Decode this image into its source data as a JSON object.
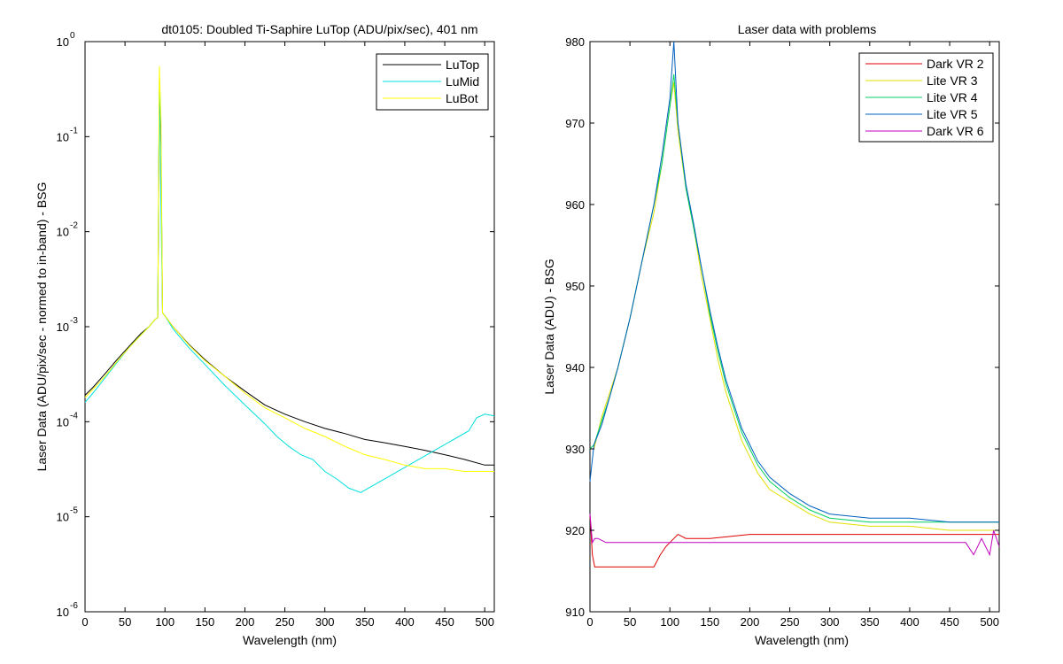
{
  "chart_data": [
    {
      "type": "line",
      "title": "dt0105: Doubled Ti-Saphire LuTop (ADU/pix/sec), 401 nm",
      "xlabel": "Wavelength (nm)",
      "ylabel": "Laser Data (ADU/pix/sec - normed to in-band) - BSG",
      "xlim": [
        0,
        512
      ],
      "ylim": [
        1e-06,
        1
      ],
      "yscale": "log",
      "x_ticks": [
        "0",
        "50",
        "100",
        "150",
        "200",
        "250",
        "300",
        "350",
        "400",
        "450",
        "500"
      ],
      "y_ticks": [
        {
          "base": "10",
          "exp": "-6"
        },
        {
          "base": "10",
          "exp": "-5"
        },
        {
          "base": "10",
          "exp": "-4"
        },
        {
          "base": "10",
          "exp": "-3"
        },
        {
          "base": "10",
          "exp": "-2"
        },
        {
          "base": "10",
          "exp": "-1"
        },
        {
          "base": "10",
          "exp": "0"
        }
      ],
      "grid": false,
      "legend_position": "top-right",
      "series": [
        {
          "name": "LuTop",
          "color": "#000000",
          "x": [
            0,
            10,
            25,
            40,
            55,
            70,
            80,
            88,
            91,
            93,
            95,
            97,
            100,
            110,
            130,
            150,
            175,
            200,
            225,
            250,
            275,
            300,
            325,
            350,
            375,
            400,
            425,
            450,
            475,
            500,
            512
          ],
          "y": [
            0.00019,
            0.00023,
            0.00032,
            0.00045,
            0.00062,
            0.00085,
            0.001,
            0.0012,
            0.00125,
            0.3,
            0.08,
            0.0014,
            0.0013,
            0.001,
            0.00065,
            0.00045,
            0.0003,
            0.00021,
            0.00015,
            0.00012,
            0.0001,
            8.5e-05,
            7.5e-05,
            6.5e-05,
            6e-05,
            5.5e-05,
            5e-05,
            4.5e-05,
            4e-05,
            3.5e-05,
            3.5e-05
          ]
        },
        {
          "name": "LuMid",
          "color": "#00e0e0",
          "x": [
            0,
            10,
            25,
            40,
            55,
            70,
            80,
            88,
            91,
            93,
            95,
            97,
            100,
            110,
            130,
            150,
            175,
            200,
            225,
            240,
            255,
            270,
            285,
            300,
            315,
            330,
            345,
            480,
            490,
            500,
            512
          ],
          "y": [
            0.00016,
            0.0002,
            0.00029,
            0.00042,
            0.0006,
            0.00082,
            0.001,
            0.0012,
            0.00125,
            0.4,
            0.02,
            0.0014,
            0.0013,
            0.00095,
            0.0006,
            0.0004,
            0.00024,
            0.00015,
            9.5e-05,
            7e-05,
            5.5e-05,
            4.5e-05,
            4e-05,
            3e-05,
            2.5e-05,
            2e-05,
            1.8e-05,
            8e-05,
            0.00011,
            0.00012,
            0.000115
          ]
        },
        {
          "name": "LuBot",
          "color": "#ffff00",
          "x": [
            0,
            10,
            25,
            40,
            55,
            70,
            80,
            88,
            91,
            93,
            95,
            97,
            100,
            110,
            130,
            150,
            175,
            200,
            225,
            250,
            275,
            300,
            325,
            350,
            375,
            400,
            425,
            450,
            475,
            500,
            512
          ],
          "y": [
            0.00018,
            0.00022,
            0.0003,
            0.00043,
            0.0006,
            0.00082,
            0.001,
            0.0012,
            0.00125,
            0.55,
            0.15,
            0.0014,
            0.0013,
            0.001,
            0.00064,
            0.00044,
            0.0003,
            0.0002,
            0.00014,
            0.00011,
            8.5e-05,
            7e-05,
            5.5e-05,
            4.5e-05,
            4e-05,
            3.5e-05,
            3.2e-05,
            3.2e-05,
            3e-05,
            3e-05,
            3e-05
          ]
        }
      ]
    },
    {
      "type": "line",
      "title": "Laser data with problems",
      "xlabel": "Wavelength (nm)",
      "ylabel": "Laser Data (ADU) - BSG",
      "xlim": [
        0,
        512
      ],
      "ylim": [
        910,
        980
      ],
      "yscale": "linear",
      "x_ticks": [
        "0",
        "50",
        "100",
        "150",
        "200",
        "250",
        "300",
        "350",
        "400",
        "450",
        "500"
      ],
      "y_ticks": [
        "910",
        "920",
        "930",
        "940",
        "950",
        "960",
        "970",
        "980"
      ],
      "grid": false,
      "legend_position": "top-right",
      "series": [
        {
          "name": "Dark VR 2",
          "color": "#e00000",
          "x": [
            0,
            3,
            6,
            10,
            20,
            40,
            60,
            80,
            88,
            95,
            100,
            105,
            110,
            120,
            150,
            200,
            250,
            300,
            350,
            400,
            450,
            500,
            512
          ],
          "y": [
            922,
            917,
            915.5,
            915.5,
            915.5,
            915.5,
            915.5,
            915.5,
            917,
            918,
            918.5,
            919,
            919.5,
            919,
            919,
            919.5,
            919.5,
            919.5,
            919.5,
            919.5,
            919.5,
            919.5,
            919.5
          ]
        },
        {
          "name": "Lite VR 3",
          "color": "#e0e000",
          "x": [
            0,
            5,
            15,
            25,
            35,
            50,
            65,
            80,
            90,
            100,
            105,
            110,
            120,
            130,
            140,
            150,
            160,
            170,
            180,
            190,
            200,
            210,
            225,
            250,
            275,
            300,
            350,
            400,
            450,
            500,
            512
          ],
          "y": [
            930,
            930,
            934,
            937,
            940,
            946,
            953,
            959,
            965,
            972,
            975,
            969,
            962,
            957,
            951,
            946,
            941,
            937,
            934,
            931,
            929,
            927,
            925,
            923.5,
            922,
            921,
            920.5,
            920.5,
            920,
            920,
            920
          ]
        },
        {
          "name": "Lite VR 4",
          "color": "#00d060",
          "x": [
            0,
            5,
            15,
            25,
            35,
            50,
            65,
            80,
            90,
            100,
            105,
            110,
            120,
            130,
            140,
            150,
            160,
            170,
            180,
            190,
            200,
            210,
            225,
            250,
            275,
            300,
            350,
            400,
            450,
            500,
            512
          ],
          "y": [
            930,
            930.5,
            933.5,
            936.5,
            940,
            946,
            953,
            960,
            965,
            972,
            976,
            970,
            962,
            957,
            952,
            946.5,
            942,
            938,
            935,
            932,
            930,
            928,
            926,
            924,
            922.5,
            921.5,
            921,
            921,
            921,
            921,
            921
          ]
        },
        {
          "name": "Lite VR 5",
          "color": "#0060c0",
          "x": [
            0,
            5,
            15,
            25,
            35,
            50,
            65,
            80,
            90,
            100,
            105,
            110,
            120,
            130,
            140,
            150,
            160,
            170,
            180,
            190,
            200,
            210,
            225,
            250,
            275,
            300,
            350,
            400,
            450,
            500,
            512
          ],
          "y": [
            926,
            930.5,
            933,
            936.5,
            940,
            946,
            953,
            960,
            966,
            973,
            980,
            970,
            962.5,
            957.5,
            952,
            947,
            942.5,
            938.5,
            935.5,
            932.5,
            930.5,
            928.5,
            926.5,
            924.5,
            923,
            922,
            921.5,
            921.5,
            921,
            921,
            921
          ]
        },
        {
          "name": "Dark VR 6",
          "color": "#c000c0",
          "x": [
            0,
            3,
            6,
            10,
            20,
            50,
            100,
            150,
            200,
            250,
            300,
            350,
            400,
            450,
            470,
            480,
            490,
            500,
            505,
            512
          ],
          "y": [
            922,
            918.5,
            919,
            919,
            918.5,
            918.5,
            918.5,
            918.5,
            918.5,
            918.5,
            918.5,
            918.5,
            918.5,
            918.5,
            918.5,
            917,
            919,
            917,
            920,
            918
          ]
        }
      ]
    }
  ]
}
